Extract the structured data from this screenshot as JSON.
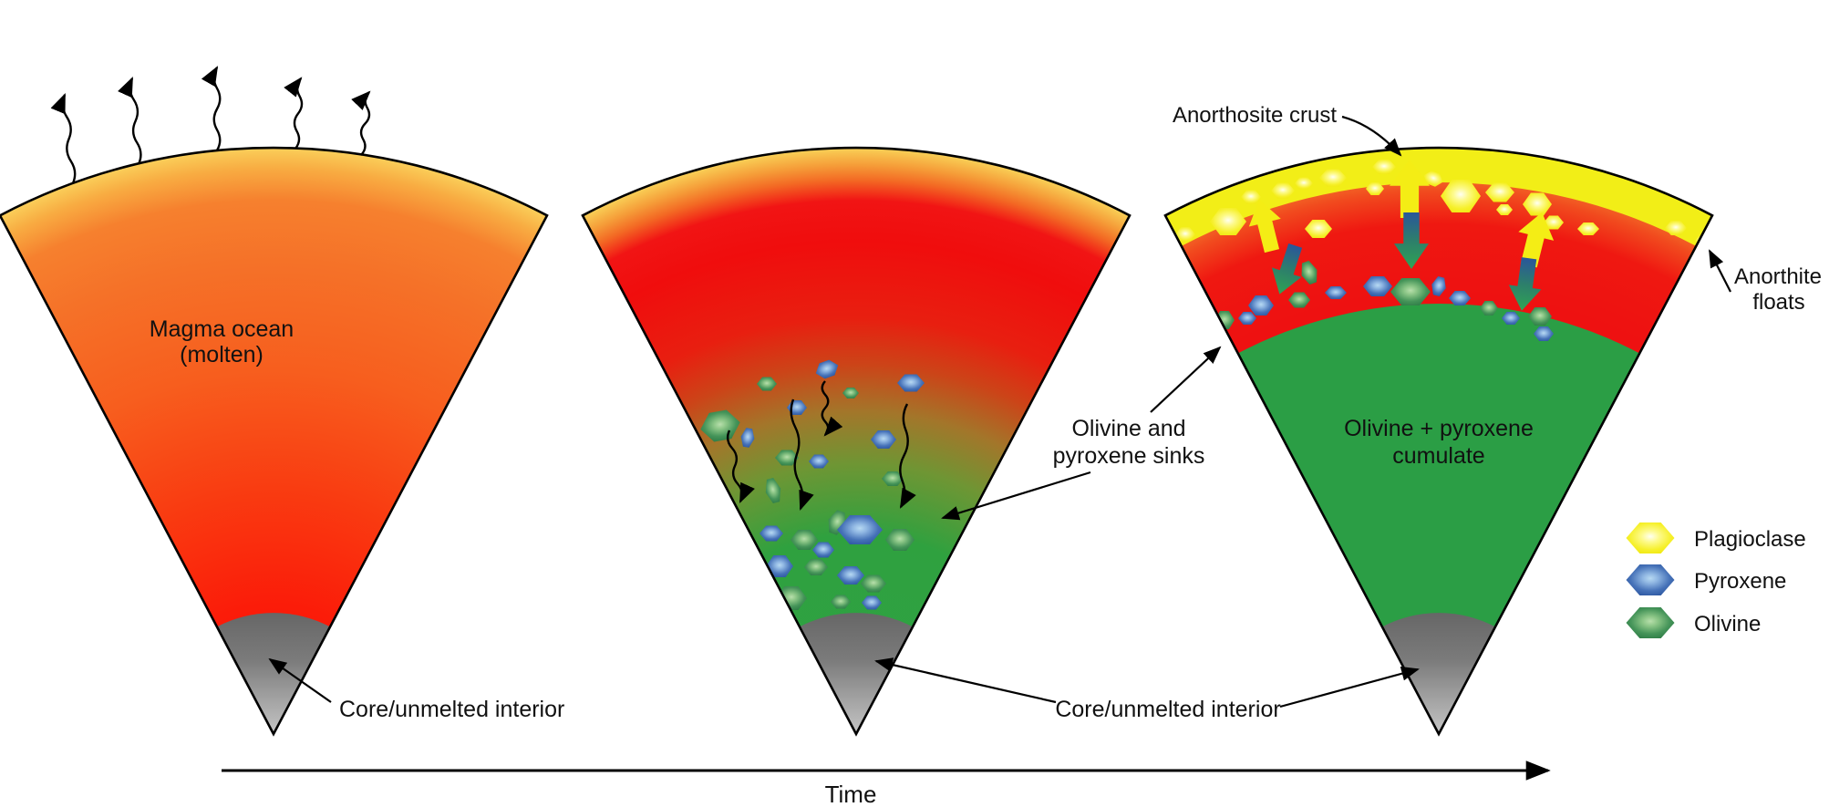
{
  "figure": {
    "description": "Magma ocean evolution diagram, three wedge stages over time",
    "panels": [
      {
        "name": "magma-ocean",
        "body_label": [
          "Magma ocean",
          "(molten)"
        ],
        "core_label": "Core/unmelted interior"
      },
      {
        "name": "crystal-settling",
        "sink_annotation": [
          "Olivine and",
          "pyroxene sinks"
        ]
      },
      {
        "name": "crust-formation",
        "crust_label": "Anorthosite crust",
        "float_annotation": [
          "Anorthite",
          "floats"
        ],
        "body_label": [
          "Olivine + pyroxene",
          "cumulate"
        ]
      }
    ],
    "shared_core_label": "Core/unmelted interior",
    "time_label": "Time",
    "legend": [
      {
        "label": "Plagioclase",
        "mineral_color": "#F2EE10"
      },
      {
        "label": "Pyroxene",
        "mineral_color": "#2B559F"
      },
      {
        "label": "Olivine",
        "mineral_color": "#2E7D3F"
      }
    ],
    "colors": {
      "background": "#FFFFFF",
      "magma_red": "#EE1111",
      "magma_orange": "#F4702A",
      "rim_yellow": "#FACF5A",
      "crust_yellow": "#F2EE17",
      "cumulate_green": "#2B9E45",
      "core_gray_top": "#656565",
      "core_gray_tip": "#C8C8C8",
      "sink_arrow_blue": "#2A569B",
      "sink_arrow_green": "#2FA454",
      "float_arrow_yellow": "#F4ED15"
    }
  }
}
